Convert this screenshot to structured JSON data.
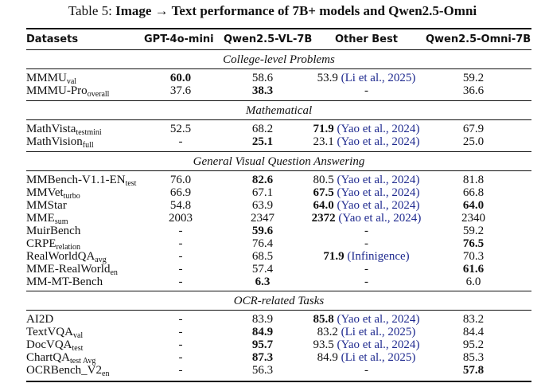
{
  "caption": {
    "prefix": "Table 5: ",
    "title": "Image → Text performance of 7B+ models and Qwen2.5-Omni"
  },
  "header": {
    "datasets": "Datasets",
    "gpt": "GPT-4o-mini",
    "qwen": "Qwen2.5-VL-7B",
    "other": "Other Best",
    "omni": "Qwen2.5-Omni-7B"
  },
  "sections": {
    "college": "College-level Problems",
    "math": "Mathematical",
    "general": "General Visual Question Answering",
    "ocr": "OCR-related Tasks"
  },
  "rows": {
    "mmmu": {
      "name": "MMMU",
      "sub": "val",
      "gpt": "60.0",
      "qwen": "58.6",
      "other": "53.9",
      "cite": "Li et al., 2025",
      "omni": "59.2"
    },
    "mmmupro": {
      "name": "MMMU-Pro",
      "sub": "overall",
      "gpt": "37.6",
      "qwen": "38.3",
      "other": "-",
      "omni": "36.6"
    },
    "mathvista": {
      "name": "MathVista",
      "sub": "testmini",
      "gpt": "52.5",
      "qwen": "68.2",
      "other": "71.9",
      "cite": "Yao et al., 2024",
      "omni": "67.9"
    },
    "mathvision": {
      "name": "MathVision",
      "sub": "full",
      "gpt": "-",
      "qwen": "25.1",
      "other": "23.1",
      "cite": "Yao et al., 2024",
      "omni": "25.0"
    },
    "mmbench": {
      "name": "MMBench-V1.1-EN",
      "sub": "test",
      "gpt": "76.0",
      "qwen": "82.6",
      "other": "80.5",
      "cite": "Yao et al., 2024",
      "omni": "81.8"
    },
    "mmvet": {
      "name": "MMVet",
      "sub": "turbo",
      "gpt": "66.9",
      "qwen": "67.1",
      "other": "67.5",
      "cite": "Yao et al., 2024",
      "omni": "66.8"
    },
    "mmstar": {
      "name": "MMStar",
      "gpt": "54.8",
      "qwen": "63.9",
      "other": "64.0",
      "cite": "Yao et al., 2024",
      "omni": "64.0"
    },
    "mme": {
      "name": "MME",
      "sub": "sum",
      "gpt": "2003",
      "qwen": "2347",
      "other": "2372",
      "cite": "Yao et al., 2024",
      "omni": "2340"
    },
    "muir": {
      "name": "MuirBench",
      "gpt": "-",
      "qwen": "59.6",
      "other": "-",
      "omni": "59.2"
    },
    "crpe": {
      "name": "CRPE",
      "sub": "relation",
      "gpt": "-",
      "qwen": "76.4",
      "other": "-",
      "omni": "76.5"
    },
    "rwqa": {
      "name": "RealWorldQA",
      "sub": "avg",
      "gpt": "-",
      "qwen": "68.5",
      "other": "71.9",
      "cite": "Infinigence",
      "omni": "70.3"
    },
    "mmerw": {
      "name": "MME-RealWorld",
      "sub": "en",
      "gpt": "-",
      "qwen": "57.4",
      "other": "-",
      "omni": "61.6"
    },
    "mmmt": {
      "name": "MM-MT-Bench",
      "gpt": "-",
      "qwen": "6.3",
      "other": "-",
      "omni": "6.0"
    },
    "ai2d": {
      "name": "AI2D",
      "gpt": "-",
      "qwen": "83.9",
      "other": "85.8",
      "cite": "Yao et al., 2024",
      "omni": "83.2"
    },
    "textvqa": {
      "name": "TextVQA",
      "sub": "val",
      "gpt": "-",
      "qwen": "84.9",
      "other": "83.2",
      "cite": "Li et al., 2025",
      "omni": "84.4"
    },
    "docvqa": {
      "name": "DocVQA",
      "sub": "test",
      "gpt": "-",
      "qwen": "95.7",
      "other": "93.5",
      "cite": "Yao et al., 2024",
      "omni": "95.2"
    },
    "chartqa": {
      "name": "ChartQA",
      "sub": "test Avg",
      "gpt": "-",
      "qwen": "87.3",
      "other": "84.9",
      "cite": "Li et al., 2025",
      "omni": "85.3"
    },
    "ocrbench": {
      "name": "OCRBench_V2",
      "sub": "en",
      "gpt": "-",
      "qwen": "56.3",
      "other": "-",
      "omni": "57.8"
    }
  }
}
